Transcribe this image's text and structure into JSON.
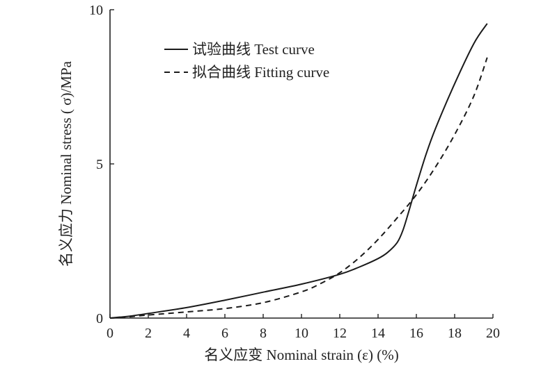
{
  "chart_data": {
    "type": "line",
    "title": "",
    "xlabel": "名义应变 Nominal strain (ε) (%)",
    "ylabel": "名义应力 Nominal stress ( σ)/MPa",
    "xlim": [
      0,
      20
    ],
    "ylim": [
      0,
      10
    ],
    "x_ticks": [
      0,
      2,
      4,
      6,
      8,
      10,
      12,
      14,
      16,
      18,
      20
    ],
    "x_tick_labels": [
      "0",
      "2",
      "4",
      "6",
      "8",
      "10",
      "12",
      "14",
      "16",
      "18",
      "20"
    ],
    "y_ticks": [
      0,
      5,
      10
    ],
    "y_tick_labels": [
      "0",
      "5",
      "10"
    ],
    "grid": false,
    "legend_position": "top-left",
    "series": [
      {
        "name": "试验曲线 Test curve",
        "style": "solid",
        "color": "#1a1a1a",
        "x": [
          0,
          0.5,
          1,
          2,
          4,
          6,
          8,
          10,
          12,
          13,
          14,
          14.5,
          15,
          15.3,
          15.6,
          16,
          16.5,
          17,
          18,
          19,
          19.7
        ],
        "y": [
          0,
          0.03,
          0.06,
          0.15,
          0.34,
          0.58,
          0.84,
          1.1,
          1.42,
          1.65,
          1.93,
          2.13,
          2.45,
          2.85,
          3.45,
          4.3,
          5.3,
          6.15,
          7.6,
          8.9,
          9.55
        ]
      },
      {
        "name": "拟合曲线 Fitting curve",
        "style": "dashed",
        "color": "#1a1a1a",
        "x": [
          0,
          1,
          2,
          4,
          6,
          8,
          10,
          11,
          12,
          13,
          14,
          15,
          16,
          17,
          18,
          19,
          19.7
        ],
        "y": [
          0,
          0.04,
          0.1,
          0.2,
          0.31,
          0.5,
          0.85,
          1.12,
          1.47,
          1.95,
          2.55,
          3.25,
          4.0,
          4.9,
          5.95,
          7.2,
          8.45
        ]
      }
    ]
  }
}
